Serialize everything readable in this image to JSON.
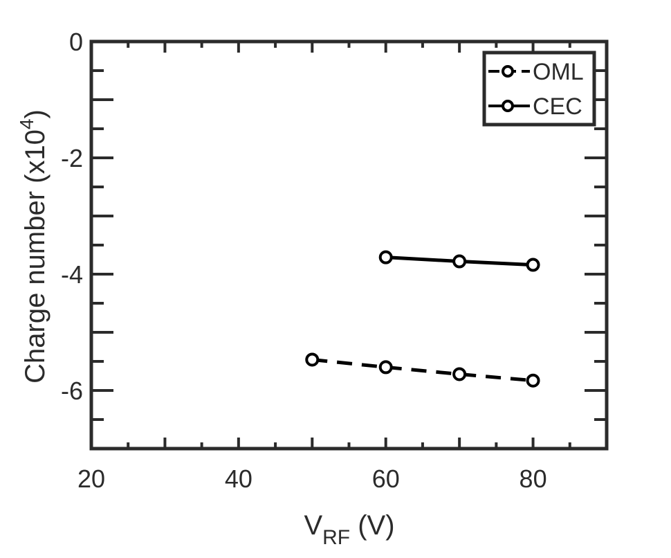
{
  "colors": {
    "axis": "#2b2b2b",
    "series": "#000000",
    "background": "#ffffff"
  },
  "chart_data": {
    "type": "line",
    "xlabel": {
      "main": "V",
      "sub": "RF",
      "unit": " (V)"
    },
    "ylabel": {
      "main": "Charge number (x10",
      "sup": "4",
      "close": ")"
    },
    "xlim": [
      20,
      90
    ],
    "ylim": [
      -7,
      0
    ],
    "xticks": [
      20,
      40,
      60,
      80
    ],
    "xtick_labels": [
      "20",
      "40",
      "60",
      "80"
    ],
    "yticks": [
      0,
      -2,
      -4,
      -6
    ],
    "ytick_labels": [
      "0",
      "-2",
      "-4",
      "-6"
    ],
    "grid": false,
    "legend_position": "top-right",
    "series": [
      {
        "name": "OML",
        "style": "dashed",
        "marker": "circle",
        "x": [
          50,
          60,
          70,
          80
        ],
        "y": [
          -5.47,
          -5.6,
          -5.72,
          -5.83
        ]
      },
      {
        "name": "CEC",
        "style": "solid",
        "marker": "circle",
        "x": [
          60,
          70,
          80
        ],
        "y": [
          -3.71,
          -3.78,
          -3.84
        ]
      }
    ]
  }
}
